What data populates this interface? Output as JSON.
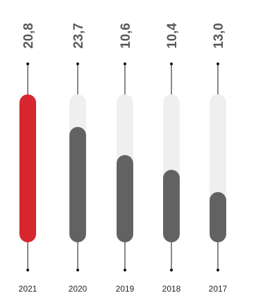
{
  "chart_data": {
    "type": "bar",
    "categories": [
      "2021",
      "2020",
      "2019",
      "2018",
      "2017"
    ],
    "values": [
      20.8,
      23.7,
      10.6,
      10.4,
      13.0
    ],
    "value_labels": [
      "20,8",
      "23,7",
      "10,6",
      "10,4",
      "13,0"
    ],
    "fill_fraction": [
      1.0,
      0.78,
      0.59,
      0.49,
      0.34
    ],
    "title": "",
    "xlabel": "",
    "ylabel": "",
    "grid": false,
    "legend": "none",
    "colors": {
      "highlight": "#d7272f",
      "bar": "#626262",
      "track": "#efefef",
      "label": "#595959",
      "axis": "#111111"
    }
  }
}
